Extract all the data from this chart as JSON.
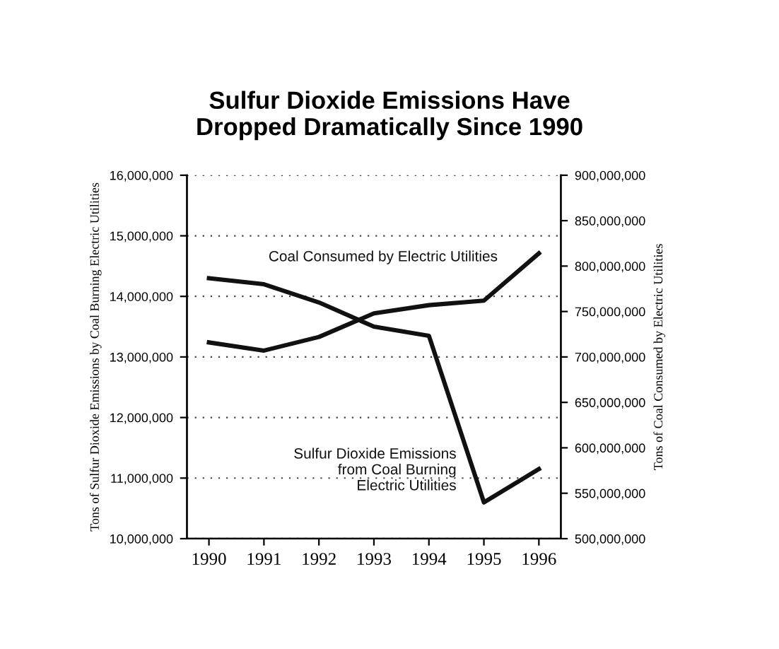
{
  "chart_data": {
    "type": "line",
    "title": "Sulfur Dioxide Emissions Have\nDropped Dramatically Since 1990",
    "ylabel": "Tons of Sulfur Dioxide Emissions by Coal Burning Electric Utilities",
    "y2label": "Tons of Coal Consumed by Electric Utilities",
    "x": [
      1990,
      1991,
      1992,
      1993,
      1994,
      1995,
      1996
    ],
    "series": [
      {
        "name": "Sulfur Dioxide Emissions\nfrom Coal Burning\nElectric Utilities",
        "color": "#111111",
        "values": [
          14300000,
          14200000,
          13900000,
          13500000,
          13350000,
          10600000,
          11150000
        ]
      },
      {
        "name": "Coal Consumed by Electric Utilities",
        "color": "#111111",
        "axis": "y2",
        "values": [
          716000000,
          707000000,
          722000000,
          748000000,
          757000000,
          762000000,
          814000000
        ]
      }
    ],
    "xlim": [
      1989.6,
      1996.4
    ],
    "xticks": [
      1990,
      1991,
      1992,
      1993,
      1994,
      1995,
      1996
    ],
    "ylim": [
      10000000,
      16000000
    ],
    "yticks": [
      {
        "value": 10000000,
        "label": "10,000,000"
      },
      {
        "value": 11000000,
        "label": "11,000,000"
      },
      {
        "value": 12000000,
        "label": "12,000,000"
      },
      {
        "value": 13000000,
        "label": "13,000,000"
      },
      {
        "value": 14000000,
        "label": "14,000,000"
      },
      {
        "value": 15000000,
        "label": "15,000,000"
      },
      {
        "value": 16000000,
        "label": "16,000,000"
      }
    ],
    "y2lim": [
      500000000,
      900000000
    ],
    "y2ticks": [
      {
        "value": 500000000,
        "label": "500,000,000"
      },
      {
        "value": 550000000,
        "label": "550,000,000"
      },
      {
        "value": 600000000,
        "label": "600,000,000"
      },
      {
        "value": 650000000,
        "label": "650,000,000"
      },
      {
        "value": 700000000,
        "label": "700,000,000"
      },
      {
        "value": 750000000,
        "label": "750,000,000"
      },
      {
        "value": 800000000,
        "label": "800,000,000"
      },
      {
        "value": 850000000,
        "label": "850,000,000"
      },
      {
        "value": 900000000,
        "label": "900,000,000"
      }
    ],
    "grid": "y",
    "line_style": "solid",
    "marker": "none",
    "legend": false
  }
}
